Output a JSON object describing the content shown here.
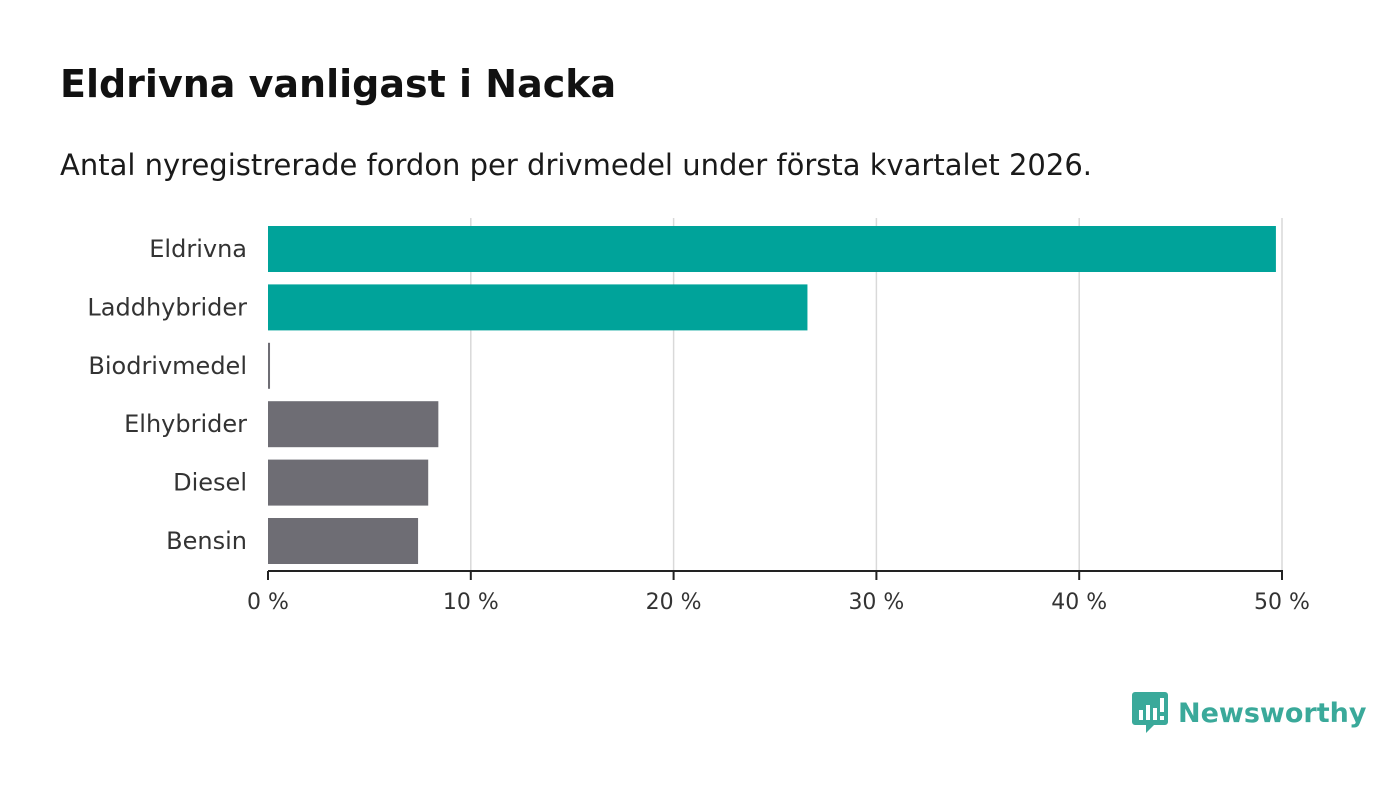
{
  "header": {
    "title": "Eldrivna vanligast i Nacka",
    "subtitle": "Antal nyregistrerade fordon per drivmedel under första kvartalet 2026."
  },
  "brand": {
    "name": "Newsworthy",
    "color": "#3aa99a",
    "icon": "bar-chart-speech-bubble-icon"
  },
  "chart_data": {
    "type": "bar",
    "orientation": "horizontal",
    "categories": [
      "Eldrivna",
      "Laddhybrider",
      "Biodrivmedel",
      "Elhybrider",
      "Diesel",
      "Bensin"
    ],
    "values": [
      49.7,
      26.6,
      0.1,
      8.4,
      7.9,
      7.4
    ],
    "highlighted": [
      true,
      true,
      false,
      false,
      false,
      false
    ],
    "colors": {
      "highlight": "#00a39a",
      "default": "#6e6d74"
    },
    "xlim": [
      0,
      50
    ],
    "xticks": [
      0,
      10,
      20,
      30,
      40,
      50
    ],
    "xtick_labels": [
      "0 %",
      "10 %",
      "20 %",
      "30 %",
      "40 %",
      "50 %"
    ],
    "grid": true
  }
}
